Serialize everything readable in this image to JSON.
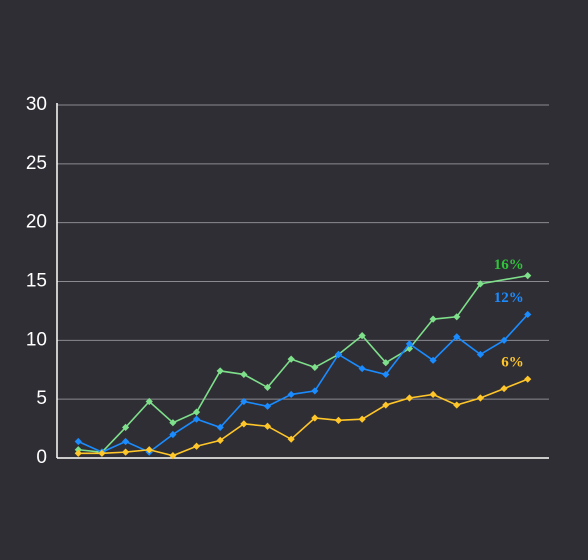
{
  "chart_data": {
    "type": "line",
    "ylim": [
      0,
      30
    ],
    "yticks": [
      0,
      5,
      10,
      15,
      20,
      25,
      30
    ],
    "grid": true,
    "xlim": [
      0.1,
      20.9
    ],
    "series": [
      {
        "name": "16%",
        "color": "#7ee08a",
        "x": [
          1,
          2,
          3,
          4,
          5,
          6,
          7,
          8,
          9,
          10,
          11,
          12,
          13,
          14,
          15,
          16,
          17,
          18,
          20
        ],
        "values": [
          0.7,
          0.5,
          2.6,
          4.8,
          3.0,
          3.9,
          7.4,
          7.1,
          6.0,
          8.4,
          7.7,
          8.8,
          10.4,
          8.1,
          9.3,
          11.8,
          12.0,
          14.8,
          15.5
        ],
        "label_color": "#2fc23a"
      },
      {
        "name": "12%",
        "color": "#1a8cff",
        "x": [
          1,
          2,
          3,
          4,
          5,
          6,
          7,
          8,
          9,
          10,
          11,
          12,
          13,
          14,
          15,
          16,
          17,
          18,
          19,
          20
        ],
        "values": [
          1.4,
          0.5,
          1.4,
          0.5,
          2.0,
          3.3,
          2.6,
          4.8,
          4.4,
          5.4,
          5.7,
          8.8,
          7.6,
          7.1,
          9.7,
          8.3,
          10.3,
          8.8,
          10.0,
          12.2
        ],
        "label_color": "#1a8cff"
      },
      {
        "name": "6%",
        "color": "#ffc629",
        "x": [
          1,
          2,
          3,
          4,
          5,
          6,
          7,
          8,
          9,
          10,
          11,
          12,
          13,
          14,
          15,
          16,
          17,
          18,
          19,
          20
        ],
        "values": [
          0.4,
          0.4,
          0.5,
          0.7,
          0.2,
          1.0,
          1.5,
          2.9,
          2.7,
          1.6,
          3.4,
          3.2,
          3.3,
          4.5,
          5.1,
          5.4,
          4.5,
          5.1,
          5.9,
          6.7
        ],
        "label_color": "#ffc629"
      }
    ]
  }
}
